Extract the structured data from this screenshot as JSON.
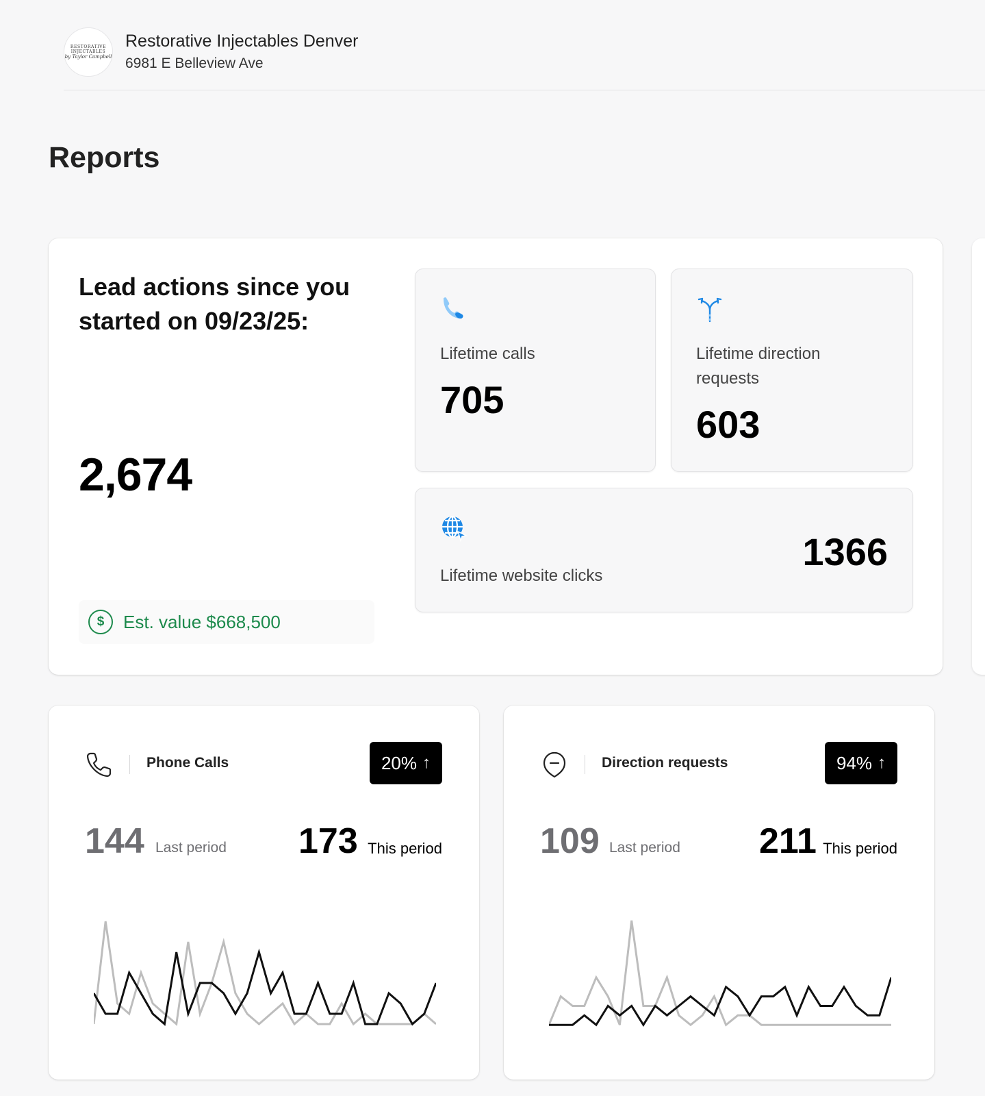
{
  "business": {
    "logo_lines": [
      "RESTORATIVE",
      "INJECTABLES",
      "by Taylor Campbell"
    ],
    "name": "Restorative Injectables Denver",
    "address": "6981 E Belleview Ave"
  },
  "page": {
    "title": "Reports"
  },
  "lead_summary": {
    "heading": "Lead actions since you started on 09/23/25:",
    "total": "2,674",
    "est_value_icon": "dollar-icon",
    "est_value": "Est. value $668,500",
    "tiles": {
      "calls": {
        "icon": "phone-icon",
        "label": "Lifetime calls",
        "value": "705"
      },
      "directions": {
        "icon": "directions-fork-icon",
        "label": "Lifetime direction requests",
        "value": "603"
      },
      "website": {
        "icon": "globe-cursor-icon",
        "label": "Lifetime website clicks",
        "value": "1366"
      }
    }
  },
  "colors": {
    "accent_blue": "#1e88e5",
    "money_green": "#1d8a4c",
    "last_period_line": "#bdbdbd",
    "this_period_line": "#111111"
  },
  "metric_cards": {
    "phone_calls": {
      "icon": "phone-outline-icon",
      "title": "Phone Calls",
      "change": "20%",
      "change_arrow": "↑",
      "last_value": "144",
      "last_label": "Last period",
      "this_value": "173",
      "this_label": "This period"
    },
    "direction_requests": {
      "icon": "location-pin-icon",
      "title": "Direction requests",
      "change": "94%",
      "change_arrow": "↑",
      "last_value": "109",
      "last_label": "Last period",
      "this_value": "211",
      "this_label": "This period"
    }
  },
  "chart_data": [
    {
      "type": "line",
      "x": [
        1,
        2,
        3,
        4,
        5,
        6,
        7,
        8,
        9,
        10,
        11,
        12,
        13,
        14,
        15,
        16,
        17,
        18,
        19,
        20,
        21,
        22,
        23,
        24,
        25,
        26,
        27,
        28,
        29,
        30
      ],
      "series": [
        {
          "name": "Last period",
          "values": [
            1,
            11,
            3,
            2,
            6,
            3,
            2,
            1,
            9,
            2,
            5,
            9,
            4,
            2,
            1,
            2,
            3,
            1,
            2,
            1,
            1,
            3,
            1,
            2,
            1,
            1,
            1,
            1,
            2,
            1
          ]
        },
        {
          "name": "This period",
          "values": [
            4,
            2,
            2,
            6,
            4,
            2,
            1,
            8,
            2,
            5,
            5,
            4,
            2,
            4,
            8,
            4,
            6,
            2,
            2,
            5,
            2,
            2,
            5,
            1,
            1,
            4,
            3,
            1,
            2,
            5
          ]
        }
      ],
      "ylim": [
        0,
        12
      ]
    },
    {
      "type": "line",
      "x": [
        1,
        2,
        3,
        4,
        5,
        6,
        7,
        8,
        9,
        10,
        11,
        12,
        13,
        14,
        15,
        16,
        17,
        18,
        19,
        20,
        21,
        22,
        23,
        24,
        25,
        26,
        27,
        28,
        29,
        30
      ],
      "series": [
        {
          "name": "Last period",
          "values": [
            1,
            4,
            3,
            3,
            6,
            4,
            1,
            12,
            3,
            3,
            6,
            2,
            1,
            2,
            4,
            1,
            2,
            2,
            1,
            1,
            1,
            1,
            1,
            1,
            1,
            1,
            1,
            1,
            1,
            1
          ]
        },
        {
          "name": "This period",
          "values": [
            1,
            1,
            1,
            2,
            1,
            3,
            2,
            3,
            1,
            3,
            2,
            3,
            4,
            3,
            2,
            5,
            4,
            2,
            4,
            4,
            5,
            2,
            5,
            3,
            3,
            5,
            3,
            2,
            2,
            6
          ]
        }
      ],
      "ylim": [
        0,
        13
      ]
    }
  ]
}
